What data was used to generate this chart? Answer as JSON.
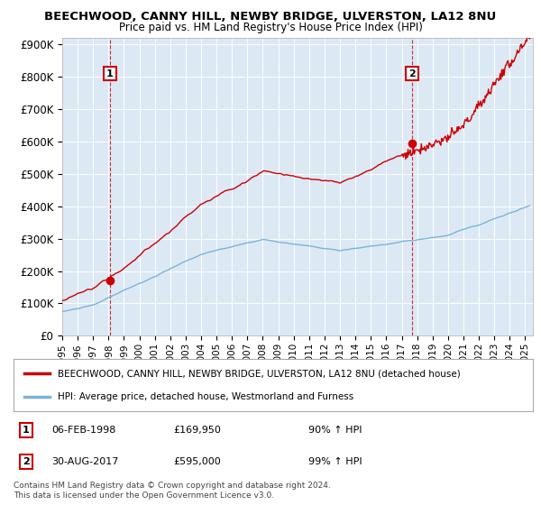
{
  "title1": "BEECHWOOD, CANNY HILL, NEWBY BRIDGE, ULVERSTON, LA12 8NU",
  "title2": "Price paid vs. HM Land Registry's House Price Index (HPI)",
  "ylabel_ticks": [
    "£0",
    "£100K",
    "£200K",
    "£300K",
    "£400K",
    "£500K",
    "£600K",
    "£700K",
    "£800K",
    "£900K"
  ],
  "ytick_values": [
    0,
    100000,
    200000,
    300000,
    400000,
    500000,
    600000,
    700000,
    800000,
    900000
  ],
  "ylim": [
    0,
    920000
  ],
  "xlim_start": 1995.0,
  "xlim_end": 2025.5,
  "xtick_years": [
    1995,
    1996,
    1997,
    1998,
    1999,
    2000,
    2001,
    2002,
    2003,
    2004,
    2005,
    2006,
    2007,
    2008,
    2009,
    2010,
    2011,
    2012,
    2013,
    2014,
    2015,
    2016,
    2017,
    2018,
    2019,
    2020,
    2021,
    2022,
    2023,
    2024,
    2025
  ],
  "sale1_x": 1998.1,
  "sale1_y": 169950,
  "sale1_label": "1",
  "sale1_date": "06-FEB-1998",
  "sale1_price": "£169,950",
  "sale1_hpi": "90% ↑ HPI",
  "sale2_x": 2017.67,
  "sale2_y": 595000,
  "sale2_label": "2",
  "sale2_date": "30-AUG-2017",
  "sale2_price": "£595,000",
  "sale2_hpi": "99% ↑ HPI",
  "hpi_color": "#7ab4d8",
  "price_color": "#cc0000",
  "vline_color": "#cc0000",
  "background_color": "#ffffff",
  "plot_bg_color": "#dce9f5",
  "grid_color": "#ffffff",
  "legend_label1": "BEECHWOOD, CANNY HILL, NEWBY BRIDGE, ULVERSTON, LA12 8NU (detached house)",
  "legend_label2": "HPI: Average price, detached house, Westmorland and Furness",
  "footer1": "Contains HM Land Registry data © Crown copyright and database right 2024.",
  "footer2": "This data is licensed under the Open Government Licence v3.0."
}
